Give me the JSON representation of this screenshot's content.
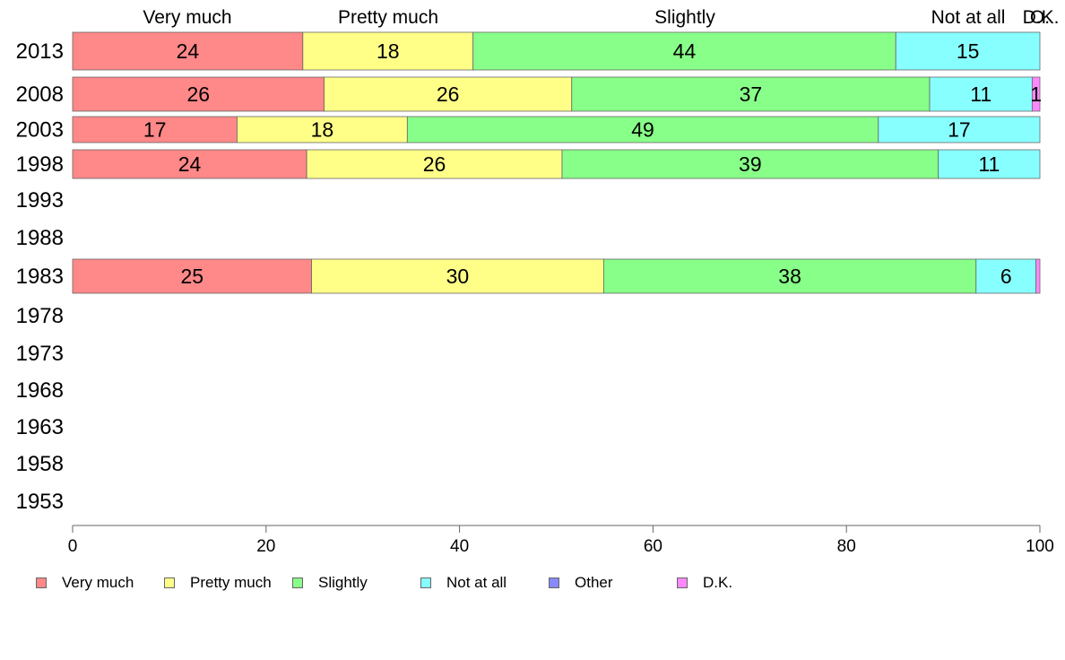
{
  "chart_data": {
    "type": "bar",
    "orientation": "horizontal",
    "stacked": true,
    "categories": [
      "2013",
      "2008",
      "2003",
      "1998",
      "1993",
      "1988",
      "1983",
      "1978",
      "1973",
      "1968",
      "1963",
      "1958",
      "1953"
    ],
    "series": [
      {
        "name": "Very much",
        "color": "#ff8888",
        "values": [
          23.8,
          26.0,
          17.0,
          24.2,
          null,
          null,
          24.7,
          null,
          null,
          null,
          null,
          null,
          null
        ],
        "labels": [
          "24",
          "26",
          "17",
          "24",
          "",
          "",
          "25",
          "",
          "",
          "",
          "",
          "",
          ""
        ]
      },
      {
        "name": "Pretty much",
        "color": "#ffff88",
        "values": [
          17.6,
          25.6,
          17.6,
          26.4,
          null,
          null,
          30.2,
          null,
          null,
          null,
          null,
          null,
          null
        ],
        "labels": [
          "18",
          "26",
          "18",
          "26",
          "",
          "",
          "30",
          "",
          "",
          "",
          "",
          "",
          ""
        ]
      },
      {
        "name": "Slightly",
        "color": "#88ff88",
        "values": [
          43.7,
          37.0,
          48.7,
          38.9,
          null,
          null,
          38.5,
          null,
          null,
          null,
          null,
          null,
          null
        ],
        "labels": [
          "44",
          "37",
          "49",
          "39",
          "",
          "",
          "38",
          "",
          "",
          "",
          "",
          "",
          ""
        ]
      },
      {
        "name": "Not at all",
        "color": "#88ffff",
        "values": [
          14.9,
          10.6,
          16.7,
          10.5,
          null,
          null,
          6.2,
          null,
          null,
          null,
          null,
          null,
          null
        ],
        "labels": [
          "15",
          "11",
          "17",
          "11",
          "",
          "",
          "6",
          "",
          "",
          "",
          "",
          "",
          ""
        ]
      },
      {
        "name": "Other",
        "color": "#8888ff",
        "values": [
          0,
          0,
          0,
          0,
          null,
          null,
          0,
          null,
          null,
          null,
          null,
          null,
          null
        ],
        "labels": [
          "",
          "",
          "",
          "",
          "",
          "",
          "",
          "",
          "",
          "",
          "",
          "",
          ""
        ]
      },
      {
        "name": "D.K.",
        "color": "#ff88ff",
        "values": [
          0,
          0.8,
          0,
          0,
          null,
          null,
          0.4,
          null,
          null,
          null,
          null,
          null,
          null
        ],
        "labels": [
          "",
          "1",
          "",
          "",
          "",
          "",
          "",
          "",
          "",
          "",
          "",
          "",
          ""
        ]
      }
    ],
    "top_labels": [
      "Very much",
      "Pretty much",
      "Slightly",
      "Not at all",
      "D.K."
    ],
    "top_labels_overlap": "O.",
    "xlim": [
      0,
      100
    ],
    "xticks": [
      "0",
      "20",
      "40",
      "60",
      "80",
      "100"
    ],
    "title": "",
    "xlabel": "",
    "ylabel": "",
    "grid": false,
    "legend_position": "bottom"
  }
}
